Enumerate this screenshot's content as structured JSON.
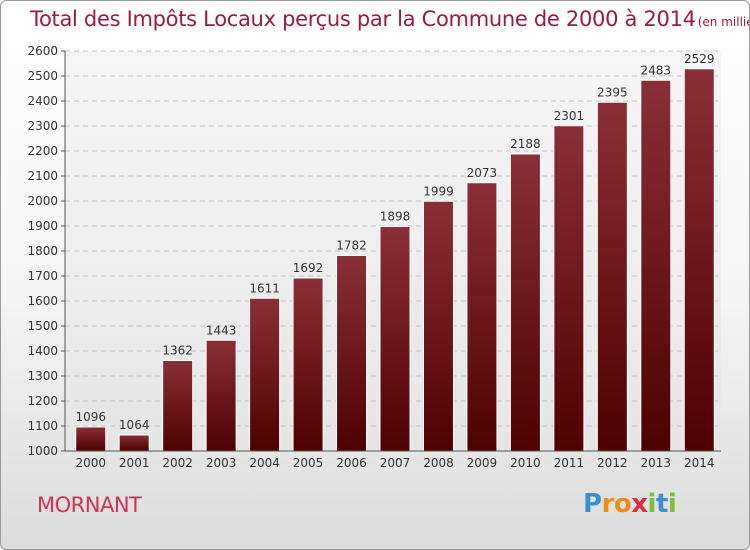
{
  "title": "Total des Impôts Locaux perçus par la Commune de 2000 à 2014",
  "unit": "(en milliers d'€)",
  "place": "MORNANT",
  "brand": {
    "letters": [
      "P",
      "r",
      "o",
      "x",
      "i",
      "t",
      "i"
    ],
    "colors": [
      "#3a8fd1",
      "#f08c1e",
      "#f08c1e",
      "#e02d3c",
      "#7bbf3a",
      "#3a8fd1",
      "#7bbf3a"
    ]
  },
  "colors": {
    "bar_top": "#8a2f37",
    "bar_bottom": "#4e0000",
    "title": "#9b1b3c",
    "place": "#d0334e"
  },
  "chart_data": {
    "type": "bar",
    "categories": [
      "2000",
      "2001",
      "2002",
      "2003",
      "2004",
      "2005",
      "2006",
      "2007",
      "2008",
      "2009",
      "2010",
      "2011",
      "2012",
      "2013",
      "2014"
    ],
    "values": [
      1096,
      1064,
      1362,
      1443,
      1611,
      1692,
      1782,
      1898,
      1999,
      2073,
      2188,
      2301,
      2395,
      2483,
      2529
    ],
    "ylim": [
      1000,
      2600
    ],
    "yticks": [
      1000,
      1100,
      1200,
      1300,
      1400,
      1500,
      1600,
      1700,
      1800,
      1900,
      2000,
      2100,
      2200,
      2300,
      2400,
      2500,
      2600
    ],
    "grid": true,
    "xlabel": "",
    "ylabel": ""
  }
}
